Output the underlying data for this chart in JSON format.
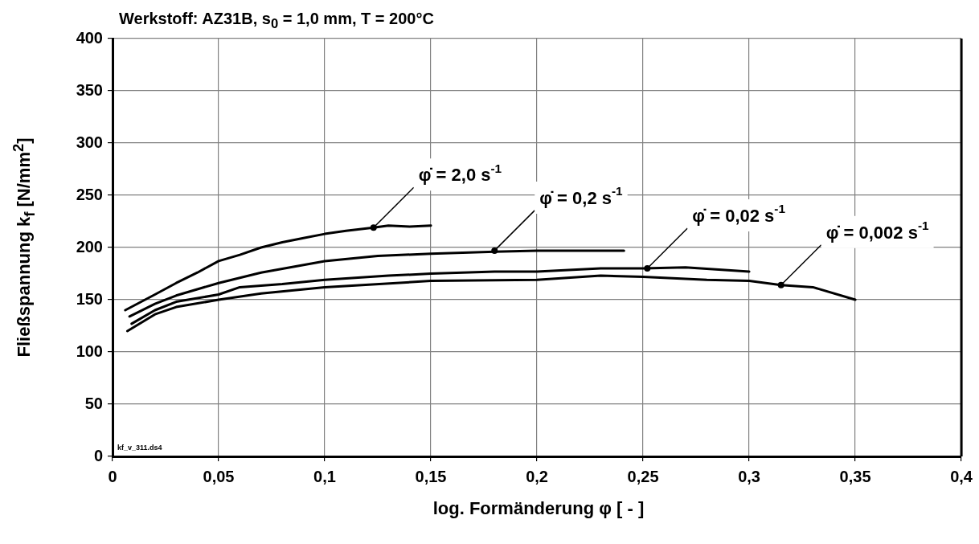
{
  "chart_data": {
    "type": "line",
    "title": "Werkstoff: AZ31B, s$_{0}$ = 1,0 mm, T = 200°C",
    "xlabel": "log. Formänderung  φ  [ - ]",
    "ylabel": "Fließspannung k$_{f}$  [N/mm$^{2}$]",
    "xlim": [
      0,
      0.4
    ],
    "xticks": [
      0,
      {
        "value": 0.05,
        "label": "0,05"
      },
      {
        "value": 0.1,
        "label": "0,1"
      },
      {
        "value": 0.15,
        "label": "0,15"
      },
      {
        "value": 0.2,
        "label": "0,2"
      },
      {
        "value": 0.25,
        "label": "0,25"
      },
      {
        "value": 0.3,
        "label": "0,3"
      },
      {
        "value": 0.35,
        "label": "0,35"
      },
      {
        "value": 0.4,
        "label": "0,4"
      }
    ],
    "ylim": [
      0,
      400
    ],
    "yticks": [
      0,
      50,
      100,
      150,
      200,
      250,
      300,
      350,
      400
    ],
    "grid": true,
    "legend": false,
    "marker": "none",
    "line_style": "solid",
    "series": [
      {
        "color": "#000000",
        "x": [
          0.006,
          0.02,
          0.03,
          0.04,
          0.05,
          0.06,
          0.07,
          0.08,
          0.09,
          0.1,
          0.11,
          0.123,
          0.13,
          0.14,
          0.15
        ],
        "values": [
          140,
          155,
          166,
          176,
          187,
          193,
          200,
          205,
          209,
          213,
          216,
          219,
          221,
          220,
          221
        ]
      },
      {
        "color": "#000000",
        "x": [
          0.008,
          0.02,
          0.03,
          0.05,
          0.07,
          0.1,
          0.125,
          0.15,
          0.18,
          0.2,
          0.241
        ],
        "values": [
          134,
          146,
          154,
          166,
          176,
          187,
          192,
          194,
          196,
          197,
          197
        ]
      },
      {
        "color": "#000000",
        "x": [
          0.009,
          0.02,
          0.03,
          0.05,
          0.06,
          0.08,
          0.1,
          0.13,
          0.15,
          0.18,
          0.2,
          0.23,
          0.25,
          0.27,
          0.3
        ],
        "values": [
          127,
          140,
          148,
          155,
          162,
          165,
          169,
          173,
          175,
          177,
          177,
          180,
          180,
          181,
          177
        ]
      },
      {
        "color": "#000000",
        "x": [
          0.007,
          0.02,
          0.03,
          0.05,
          0.07,
          0.1,
          0.15,
          0.2,
          0.23,
          0.25,
          0.28,
          0.3,
          0.315,
          0.33,
          0.35
        ],
        "values": [
          120,
          136,
          143,
          150,
          156,
          162,
          168,
          169,
          173,
          172,
          169,
          168,
          164,
          162,
          150
        ]
      }
    ],
    "annotations": [
      {
        "text": "φ̇ = 2,0 s$^{-1}$",
        "x": 0.123,
        "y": 219
      },
      {
        "text": "φ̇ = 0,2 s$^{-1}$",
        "x": 0.18,
        "y": 197
      },
      {
        "text": "φ̇ = 0,02 s$^{-1}$",
        "x": 0.252,
        "y": 180
      },
      {
        "text": "φ̇ = 0,002 s$^{-1}$",
        "x": 0.315,
        "y": 164
      },
      "kf_v_311.ds4"
    ]
  }
}
